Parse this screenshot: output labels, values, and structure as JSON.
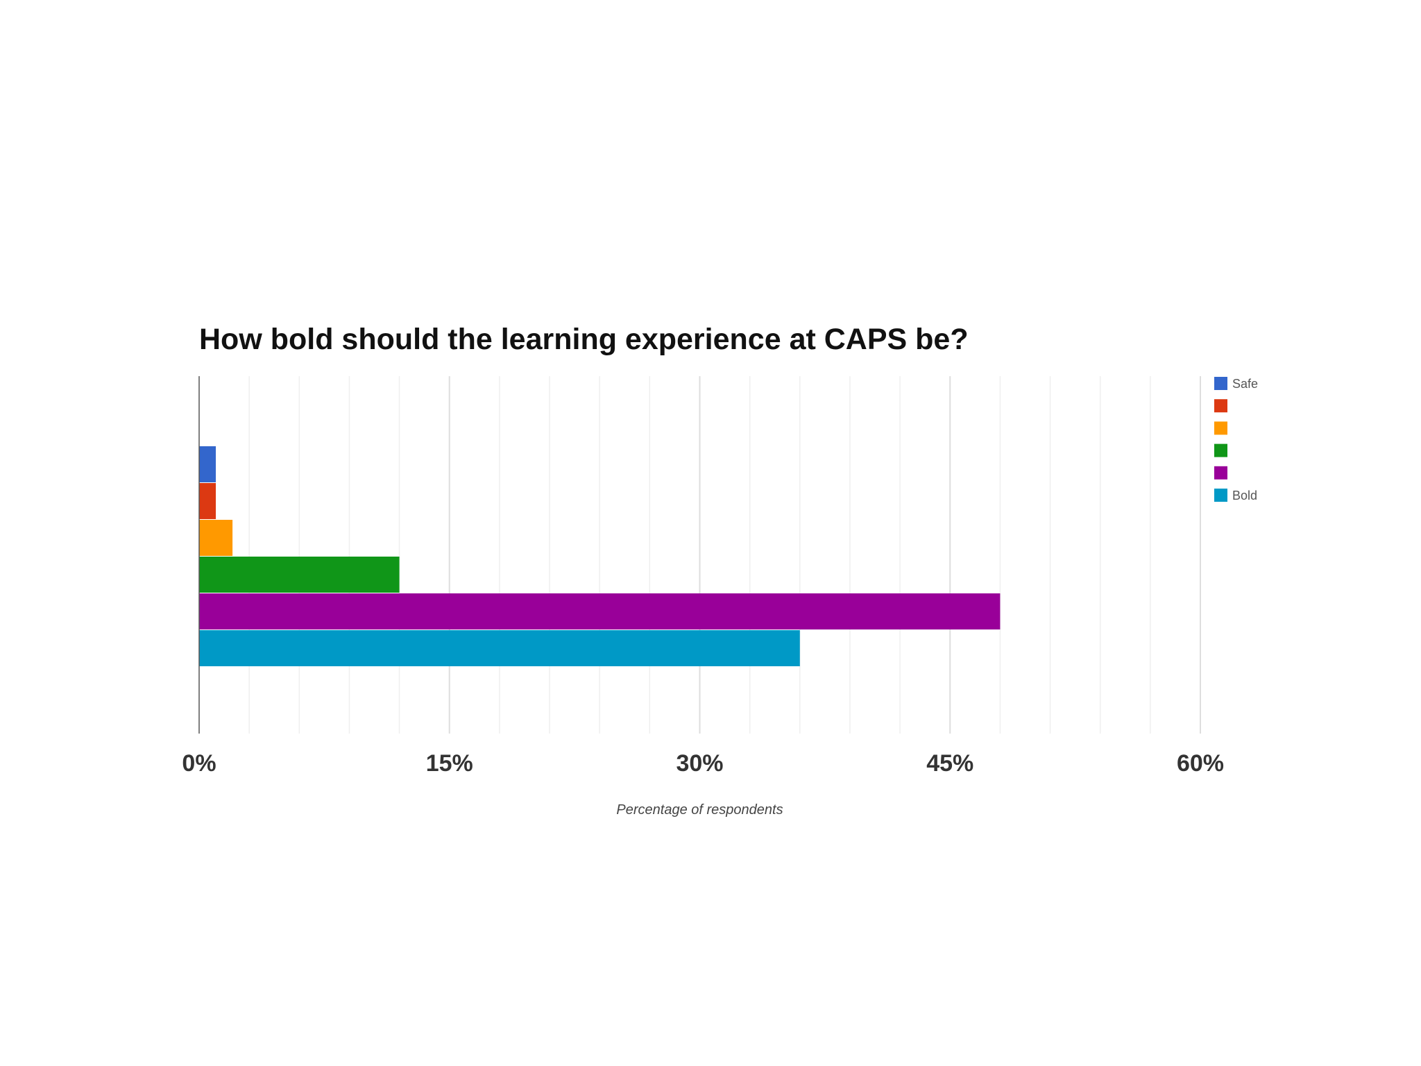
{
  "chart_data": {
    "type": "bar",
    "orientation": "horizontal",
    "title": "How bold should the learning experience at CAPS be?",
    "xlabel": "Percentage of respondents",
    "ylabel": "",
    "xlim": [
      0,
      60
    ],
    "x_ticks": [
      0,
      15,
      30,
      45,
      60
    ],
    "x_tick_labels": [
      "0%",
      "15%",
      "30%",
      "45%",
      "60%"
    ],
    "grid": true,
    "legend_position": "right",
    "series": [
      {
        "name": "Safe",
        "value": 1,
        "color": "#3366cc"
      },
      {
        "name": "",
        "value": 1,
        "color": "#dc3912"
      },
      {
        "name": "",
        "value": 2,
        "color": "#ff9900"
      },
      {
        "name": "",
        "value": 12,
        "color": "#109618"
      },
      {
        "name": "",
        "value": 48,
        "color": "#990099"
      },
      {
        "name": "Bold",
        "value": 36,
        "color": "#0099c6"
      }
    ]
  }
}
